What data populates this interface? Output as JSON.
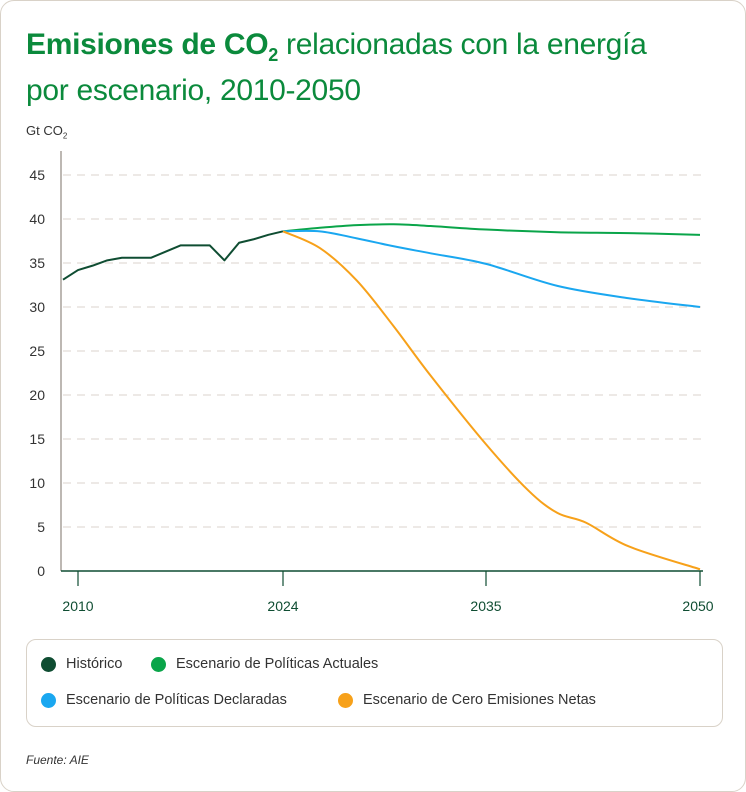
{
  "chart_data": {
    "type": "line",
    "title_bold": "Emisiones de CO",
    "title_sub": "2",
    "title_rest": " relacionadas con la energía",
    "title_line2": "por escenario, 2010-2050",
    "ylabel": "Gt CO",
    "ylabel_sub": "2",
    "ylim": [
      0,
      45
    ],
    "yticks": [
      0,
      5,
      10,
      15,
      20,
      25,
      30,
      35,
      40,
      45
    ],
    "xticks": [
      2010,
      2024,
      2035,
      2050
    ],
    "grid": true,
    "legend_placement": "bottom",
    "series": [
      {
        "name": "Histórico",
        "color": "#0f4d32",
        "x": [
          2009,
          2010,
          2011,
          2012,
          2013,
          2014,
          2015,
          2016,
          2017,
          2018,
          2019,
          2020,
          2021,
          2022,
          2023,
          2024
        ],
        "y": [
          33.1,
          34.2,
          34.7,
          35.3,
          35.6,
          35.6,
          35.6,
          36.3,
          37.0,
          37.0,
          37.0,
          35.3,
          37.3,
          37.7,
          38.2,
          38.6
        ]
      },
      {
        "name": "Escenario de Políticas Actuales",
        "color": "#0aa54a",
        "x": [
          2024,
          2026,
          2028,
          2030,
          2032,
          2035,
          2040,
          2045,
          2050
        ],
        "y": [
          38.6,
          39.0,
          39.3,
          39.4,
          39.2,
          38.8,
          38.5,
          38.4,
          38.2
        ]
      },
      {
        "name": "Escenario de Políticas Declaradas",
        "color": "#1aa7f0",
        "x": [
          2024,
          2026,
          2028,
          2030,
          2032,
          2035,
          2040,
          2045,
          2050
        ],
        "y": [
          38.6,
          38.6,
          37.8,
          36.9,
          36.1,
          34.9,
          32.4,
          31.0,
          30.0
        ]
      },
      {
        "name": "Escenario de Cero Emisiones Netas",
        "color": "#f7a11a",
        "x": [
          2024,
          2026,
          2028,
          2030,
          2032,
          2035,
          2038,
          2040,
          2042,
          2045,
          2050
        ],
        "y": [
          38.6,
          36.7,
          33.0,
          27.8,
          22.2,
          14.4,
          9.1,
          6.6,
          5.5,
          2.8,
          0.2
        ]
      }
    ]
  },
  "source": "Fuente: AIE"
}
